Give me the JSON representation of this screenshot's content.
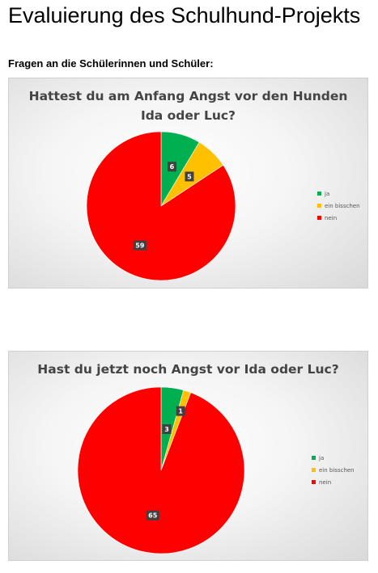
{
  "page": {
    "title": "Evaluierung des Schulhund-Projekts",
    "subtitle": "Fragen an die Schülerinnen und Schüler:"
  },
  "colors": {
    "ja": "#00b050",
    "ein_bisschen": "#ffc000",
    "nein": "#ff0000",
    "label_bg": "#404040"
  },
  "chart_data": [
    {
      "type": "pie",
      "title_lines": [
        "Hattest du am Anfang Angst vor den Hunden",
        "Ida oder Luc?"
      ],
      "categories": [
        "ja",
        "ein bisschen",
        "nein"
      ],
      "values": [
        6,
        5,
        59
      ],
      "data_labels": [
        "6",
        "5",
        "59"
      ],
      "legend_position": "right"
    },
    {
      "type": "pie",
      "title_lines": [
        "Hast du jetzt noch Angst vor Ida oder Luc?"
      ],
      "categories": [
        "ja",
        "ein bisschen",
        "nein"
      ],
      "values": [
        3,
        1,
        65
      ],
      "data_labels": [
        "3",
        "1",
        "65"
      ],
      "legend_position": "right"
    }
  ]
}
